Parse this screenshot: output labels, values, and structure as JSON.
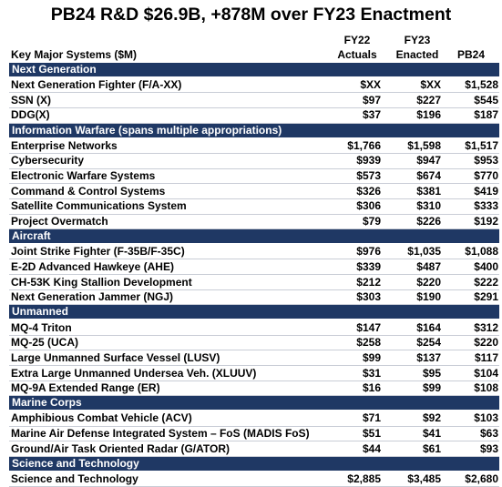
{
  "title": "PB24 R&D $26.9B, +878M over FY23 Enactment",
  "table": {
    "columns": [
      [
        "Key Major Systems ($M)"
      ],
      [
        "FY22",
        "Actuals"
      ],
      [
        "FY23",
        "Enacted"
      ],
      [
        "PB24"
      ]
    ],
    "sections": [
      {
        "name": "Next Generation",
        "rows": [
          [
            "Next Generation Fighter (F/A-XX)",
            "$XX",
            "$XX",
            "$1,528"
          ],
          [
            "SSN (X)",
            "$97",
            "$227",
            "$545"
          ],
          [
            "DDG(X)",
            "$37",
            "$196",
            "$187"
          ]
        ]
      },
      {
        "name": "Information Warfare (spans multiple appropriations)",
        "rows": [
          [
            "Enterprise Networks",
            "$1,766",
            "$1,598",
            "$1,517"
          ],
          [
            "Cybersecurity",
            "$939",
            "$947",
            "$953"
          ],
          [
            "Electronic Warfare Systems",
            "$573",
            "$674",
            "$770"
          ],
          [
            "Command & Control Systems",
            "$326",
            "$381",
            "$419"
          ],
          [
            "Satellite Communications System",
            "$306",
            "$310",
            "$333"
          ],
          [
            "Project Overmatch",
            "$79",
            "$226",
            "$192"
          ]
        ]
      },
      {
        "name": "Aircraft",
        "rows": [
          [
            "Joint Strike Fighter (F-35B/F-35C)",
            "$976",
            "$1,035",
            "$1,088"
          ],
          [
            "E-2D Advanced Hawkeye (AHE)",
            "$339",
            "$487",
            "$400"
          ],
          [
            "CH-53K King Stallion Development",
            "$212",
            "$220",
            "$222"
          ],
          [
            "Next Generation Jammer (NGJ)",
            "$303",
            "$190",
            "$291"
          ]
        ]
      },
      {
        "name": "Unmanned",
        "rows": [
          [
            "MQ-4 Triton",
            "$147",
            "$164",
            "$312"
          ],
          [
            "MQ-25 (UCA)",
            "$258",
            "$254",
            "$220"
          ],
          [
            "Large Unmanned Surface Vessel (LUSV)",
            "$99",
            "$137",
            "$117"
          ],
          [
            "Extra Large Unmanned Undersea Veh. (XLUUV)",
            "$31",
            "$95",
            "$104"
          ],
          [
            "MQ-9A Extended Range (ER)",
            "$16",
            "$99",
            "$108"
          ]
        ]
      },
      {
        "name": "Marine Corps",
        "rows": [
          [
            "Amphibious Combat Vehicle (ACV)",
            "$71",
            "$92",
            "$103"
          ],
          [
            "Marine Air Defense Integrated System – FoS  (MADIS FoS)",
            "$51",
            "$41",
            "$63"
          ],
          [
            "Ground/Air Task Oriented Radar (G/ATOR)",
            "$44",
            "$61",
            "$93"
          ]
        ]
      },
      {
        "name": "Science and Technology",
        "rows": [
          [
            "Science and Technology",
            "$2,885",
            "$3,485",
            "$2,680"
          ]
        ]
      }
    ]
  }
}
